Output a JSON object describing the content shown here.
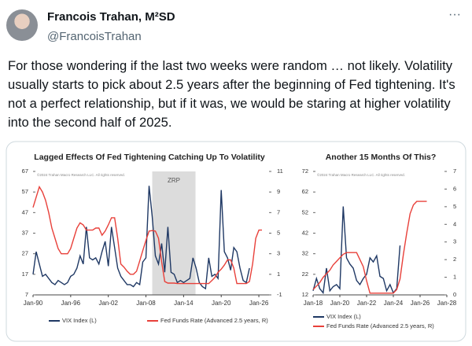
{
  "tweet": {
    "name": "Francois Trahan, M²SD",
    "handle": "@FrancoisTrahan",
    "menu": "···",
    "text": "For those wondering if the last two weeks were random … not likely. Volatility usually starts to pick about 2.5 years after the beginning of Fed tightening. It's not a perfect relationship, but if it was, we would be staring at higher volatility into the second half of 2025."
  },
  "chart_data": [
    {
      "type": "line",
      "title": "Lagged Effects Of Fed Tightening Catching Up To Volatility",
      "note": "©2024 Trahan Macro Research LLC. All rights reserved.",
      "shade": {
        "label": "ZRP",
        "x": [
          2009,
          2015.9
        ]
      },
      "legend": "bottom-row",
      "xlim": [
        1990,
        2028
      ],
      "xticks": [
        {
          "value": 1990,
          "label": "Jan-90"
        },
        {
          "value": 1996,
          "label": "Jan-96"
        },
        {
          "value": 2002,
          "label": "Jan-02"
        },
        {
          "value": 2008,
          "label": "Jan-08"
        },
        {
          "value": 2014,
          "label": "Jan-14"
        },
        {
          "value": 2020,
          "label": "Jan-20"
        },
        {
          "value": 2026,
          "label": "Jan-26"
        }
      ],
      "ylim": [
        7,
        67
      ],
      "yticks": [
        7,
        17,
        27,
        37,
        47,
        57,
        67
      ],
      "y2lim": [
        -1,
        11
      ],
      "y2ticks": [
        -1,
        1,
        3,
        5,
        7,
        9,
        11
      ],
      "x": [
        1990,
        1990.5,
        1991,
        1991.5,
        1992,
        1992.5,
        1993,
        1993.5,
        1994,
        1994.5,
        1995,
        1995.5,
        1996,
        1996.5,
        1997,
        1997.5,
        1998,
        1998.5,
        1999,
        1999.5,
        2000,
        2000.5,
        2001,
        2001.5,
        2002,
        2002.5,
        2003,
        2003.5,
        2004,
        2004.5,
        2005,
        2005.5,
        2006,
        2006.5,
        2007,
        2007.5,
        2008,
        2008.5,
        2009,
        2009.5,
        2010,
        2010.5,
        2011,
        2011.5,
        2012,
        2012.5,
        2013,
        2013.5,
        2014,
        2014.5,
        2015,
        2015.5,
        2016,
        2016.5,
        2017,
        2017.5,
        2018,
        2018.5,
        2019,
        2019.5,
        2020,
        2020.5,
        2021,
        2021.5,
        2022,
        2022.5,
        2023,
        2023.5,
        2024,
        2024.5,
        2025,
        2025.5,
        2026,
        2026.5
      ],
      "series": [
        {
          "name": "VIX Index (L)",
          "color": "#1f3864",
          "axis": "y",
          "values": [
            17,
            28,
            22,
            16,
            17,
            15,
            13,
            12,
            14,
            13,
            12,
            13,
            16,
            17,
            20,
            26,
            22,
            40,
            25,
            24,
            25,
            22,
            28,
            33,
            21,
            40,
            30,
            20,
            16,
            14,
            12,
            12,
            11,
            13,
            12,
            23,
            25,
            60,
            45,
            26,
            22,
            32,
            18,
            40,
            18,
            17,
            13,
            14,
            13,
            14,
            15,
            25,
            20,
            13,
            11,
            10,
            25,
            16,
            17,
            15,
            58,
            28,
            25,
            19,
            30,
            28,
            20,
            14,
            13,
            20,
            null,
            null,
            null,
            null
          ]
        },
        {
          "name": "Fed Funds Rate (Advanced 2.5 years, R)",
          "color": "#e8403a",
          "axis": "y2",
          "values": [
            7.5,
            8.5,
            9.5,
            9,
            8.2,
            7,
            5.5,
            4.5,
            3.5,
            3,
            3,
            3,
            3.5,
            4.5,
            5.5,
            6,
            5.8,
            5.3,
            5.3,
            5.3,
            5.5,
            5.5,
            4.8,
            5.2,
            5.8,
            6.5,
            6.5,
            4.5,
            2,
            1.7,
            1.3,
            1,
            1,
            1.3,
            2.3,
            3.3,
            4.3,
            5.2,
            5.25,
            5.2,
            4.5,
            2.2,
            0.3,
            0.15,
            0.15,
            0.15,
            0.1,
            0.1,
            0.1,
            0.1,
            0.1,
            0.1,
            0.1,
            0.1,
            0.1,
            0.1,
            0.1,
            0.4,
            0.7,
            1.2,
            1.5,
            1.9,
            2.4,
            2.4,
            1.6,
            0.1,
            0.1,
            0.1,
            0.1,
            0.3,
            2,
            4.5,
            5.3,
            5.3
          ]
        }
      ]
    },
    {
      "type": "line",
      "title": "Another 15 Months Of This?",
      "note": "©2024 Trahan Macro Research LLC. All rights reserved.",
      "legend": "bottom-column",
      "xlim": [
        2018,
        2028
      ],
      "xticks": [
        {
          "value": 2018,
          "label": "Jan-18"
        },
        {
          "value": 2020,
          "label": "Jan-20"
        },
        {
          "value": 2022,
          "label": "Jan-22"
        },
        {
          "value": 2024,
          "label": "Jan-24"
        },
        {
          "value": 2026,
          "label": "Jan-26"
        },
        {
          "value": 2028,
          "label": "Jan-28"
        }
      ],
      "ylim": [
        12,
        72
      ],
      "yticks": [
        12,
        22,
        32,
        42,
        52,
        62,
        72
      ],
      "y2lim": [
        0,
        7
      ],
      "y2ticks": [
        0,
        1,
        2,
        3,
        4,
        5,
        6,
        7
      ],
      "x": [
        2018,
        2018.25,
        2018.5,
        2018.75,
        2019,
        2019.25,
        2019.5,
        2019.75,
        2020,
        2020.25,
        2020.5,
        2020.75,
        2021,
        2021.25,
        2021.5,
        2021.75,
        2022,
        2022.25,
        2022.5,
        2022.75,
        2023,
        2023.25,
        2023.5,
        2023.75,
        2024,
        2024.25,
        2024.5,
        2024.75,
        2025,
        2025.25,
        2025.5,
        2025.75,
        2026,
        2026.25,
        2026.5
      ],
      "series": [
        {
          "name": "VIX Index (L)",
          "color": "#1f3864",
          "axis": "y",
          "values": [
            14,
            20,
            15,
            13,
            25,
            14,
            16,
            17,
            15,
            55,
            30,
            27,
            25,
            19,
            17,
            20,
            22,
            30,
            28,
            31,
            21,
            20,
            14,
            17,
            13,
            15,
            36,
            null,
            null,
            null,
            null,
            null,
            null,
            null,
            null
          ]
        },
        {
          "name": "Fed Funds Rate (Advanced 2.5 years, R)",
          "color": "#e8403a",
          "axis": "y2",
          "values": [
            0.3,
            0.5,
            0.7,
            1.0,
            1.2,
            1.4,
            1.7,
            1.9,
            2.1,
            2.3,
            2.4,
            2.4,
            2.4,
            2.4,
            2.0,
            1.6,
            0.8,
            0.1,
            0.1,
            0.1,
            0.1,
            0.1,
            0.1,
            0.1,
            0.1,
            0.3,
            0.9,
            2.3,
            3.5,
            4.6,
            5.1,
            5.3,
            5.3,
            5.3,
            5.3
          ]
        }
      ]
    }
  ]
}
